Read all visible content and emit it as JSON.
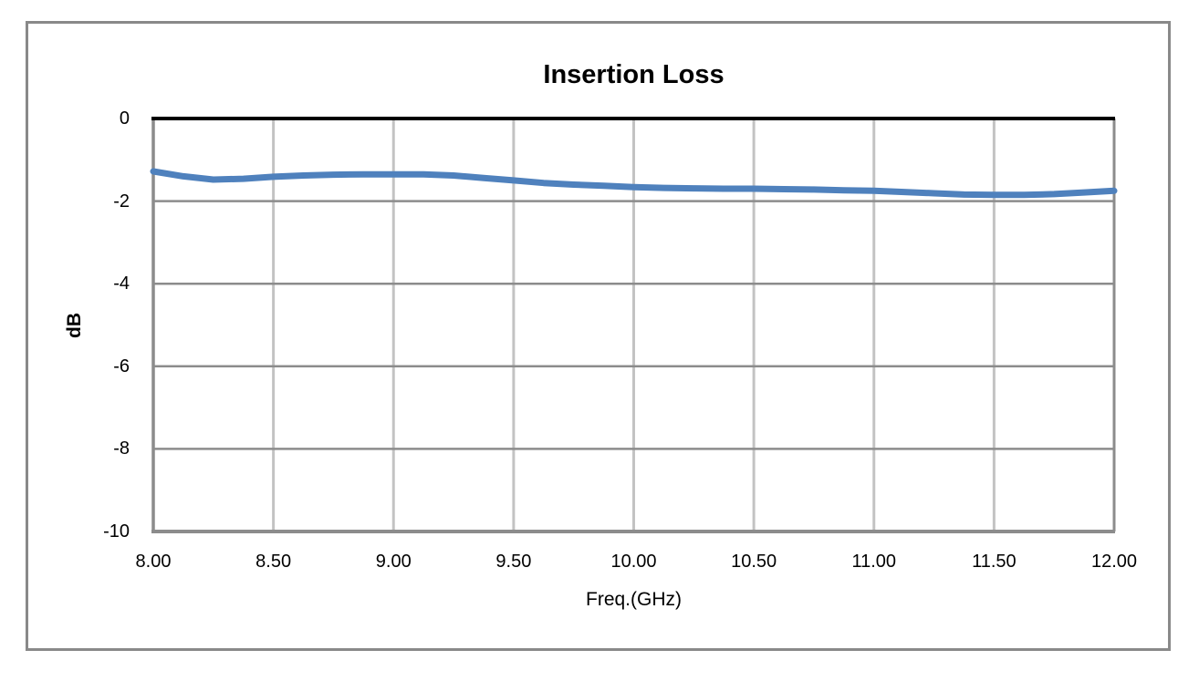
{
  "figure": {
    "border_color": "#898989",
    "background": "#FFFFFF"
  },
  "chart_data": {
    "type": "line",
    "title": "Insertion Loss",
    "xlabel": "Freq.(GHz)",
    "ylabel": "dB",
    "xlim": [
      8.0,
      12.0
    ],
    "ylim": [
      -10,
      0
    ],
    "grid": true,
    "legend": "none",
    "x_tick_values": [
      8.0,
      8.5,
      9.0,
      9.5,
      10.0,
      10.5,
      11.0,
      11.5,
      12.0
    ],
    "x_tick_labels": [
      "8.00",
      "8.50",
      "9.00",
      "9.50",
      "10.00",
      "10.50",
      "11.00",
      "11.50",
      "12.00"
    ],
    "y_tick_values": [
      0,
      -2,
      -4,
      -6,
      -8,
      -10
    ],
    "y_tick_labels": [
      "0",
      "-2",
      "-4",
      "-6",
      "-8",
      "-10"
    ],
    "colors": {
      "series": "#4F81BD",
      "grid_vertical": "#C3C3C3",
      "grid_horizontal": "#8C8C8C",
      "plot_border": "#8C8C8C",
      "zero_axis": "#000000",
      "text": "#000000"
    },
    "series": [
      {
        "name": "Insertion Loss",
        "x": [
          8.0,
          8.125,
          8.25,
          8.375,
          8.5,
          8.625,
          8.75,
          8.875,
          9.0,
          9.125,
          9.25,
          9.375,
          9.5,
          9.625,
          9.75,
          9.875,
          10.0,
          10.125,
          10.25,
          10.375,
          10.5,
          10.625,
          10.75,
          10.875,
          11.0,
          11.125,
          11.25,
          11.375,
          11.5,
          11.625,
          11.75,
          11.875,
          12.0
        ],
        "y": [
          -1.28,
          -1.4,
          -1.48,
          -1.46,
          -1.41,
          -1.38,
          -1.36,
          -1.35,
          -1.35,
          -1.35,
          -1.38,
          -1.44,
          -1.5,
          -1.56,
          -1.6,
          -1.63,
          -1.66,
          -1.68,
          -1.69,
          -1.7,
          -1.7,
          -1.71,
          -1.72,
          -1.74,
          -1.75,
          -1.78,
          -1.81,
          -1.84,
          -1.85,
          -1.85,
          -1.83,
          -1.79,
          -1.75
        ]
      }
    ]
  }
}
